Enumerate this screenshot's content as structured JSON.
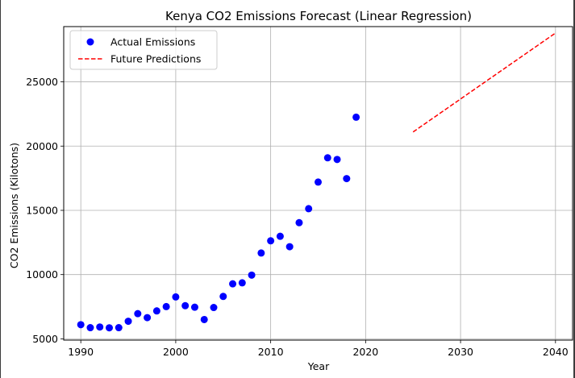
{
  "chart_data": {
    "type": "scatter",
    "title": "Kenya CO2 Emissions Forecast (Linear Regression)",
    "xlabel": "Year",
    "ylabel": "CO2 Emissions (Kilotons)",
    "xlim": [
      1988.2,
      2041.8
    ],
    "ylim": [
      4900,
      29300
    ],
    "xticks": [
      1990,
      2000,
      2010,
      2020,
      2030,
      2040
    ],
    "yticks": [
      5000,
      10000,
      15000,
      20000,
      25000
    ],
    "grid": true,
    "legend_position": "top-left",
    "series": [
      {
        "name": "Actual Emissions",
        "kind": "scatter",
        "color": "#0000ff",
        "x": [
          1990,
          1991,
          1992,
          1993,
          1994,
          1995,
          1996,
          1997,
          1998,
          1999,
          2000,
          2001,
          2002,
          2003,
          2004,
          2005,
          2006,
          2007,
          2008,
          2009,
          2010,
          2011,
          2012,
          2013,
          2014,
          2015,
          2016,
          2017,
          2018,
          2019
        ],
        "y": [
          6100,
          5870,
          5920,
          5860,
          5870,
          6370,
          6960,
          6650,
          7170,
          7510,
          8260,
          7580,
          7460,
          6500,
          7440,
          8300,
          9280,
          9360,
          9960,
          11680,
          12630,
          12980,
          12170,
          14040,
          15130,
          17200,
          19090,
          18960,
          17470,
          22250
        ]
      },
      {
        "name": "Future Predictions",
        "kind": "line",
        "style": "dashed",
        "color": "#ff0000",
        "x": [
          2025,
          2040
        ],
        "y": [
          21100,
          28800
        ]
      }
    ]
  }
}
